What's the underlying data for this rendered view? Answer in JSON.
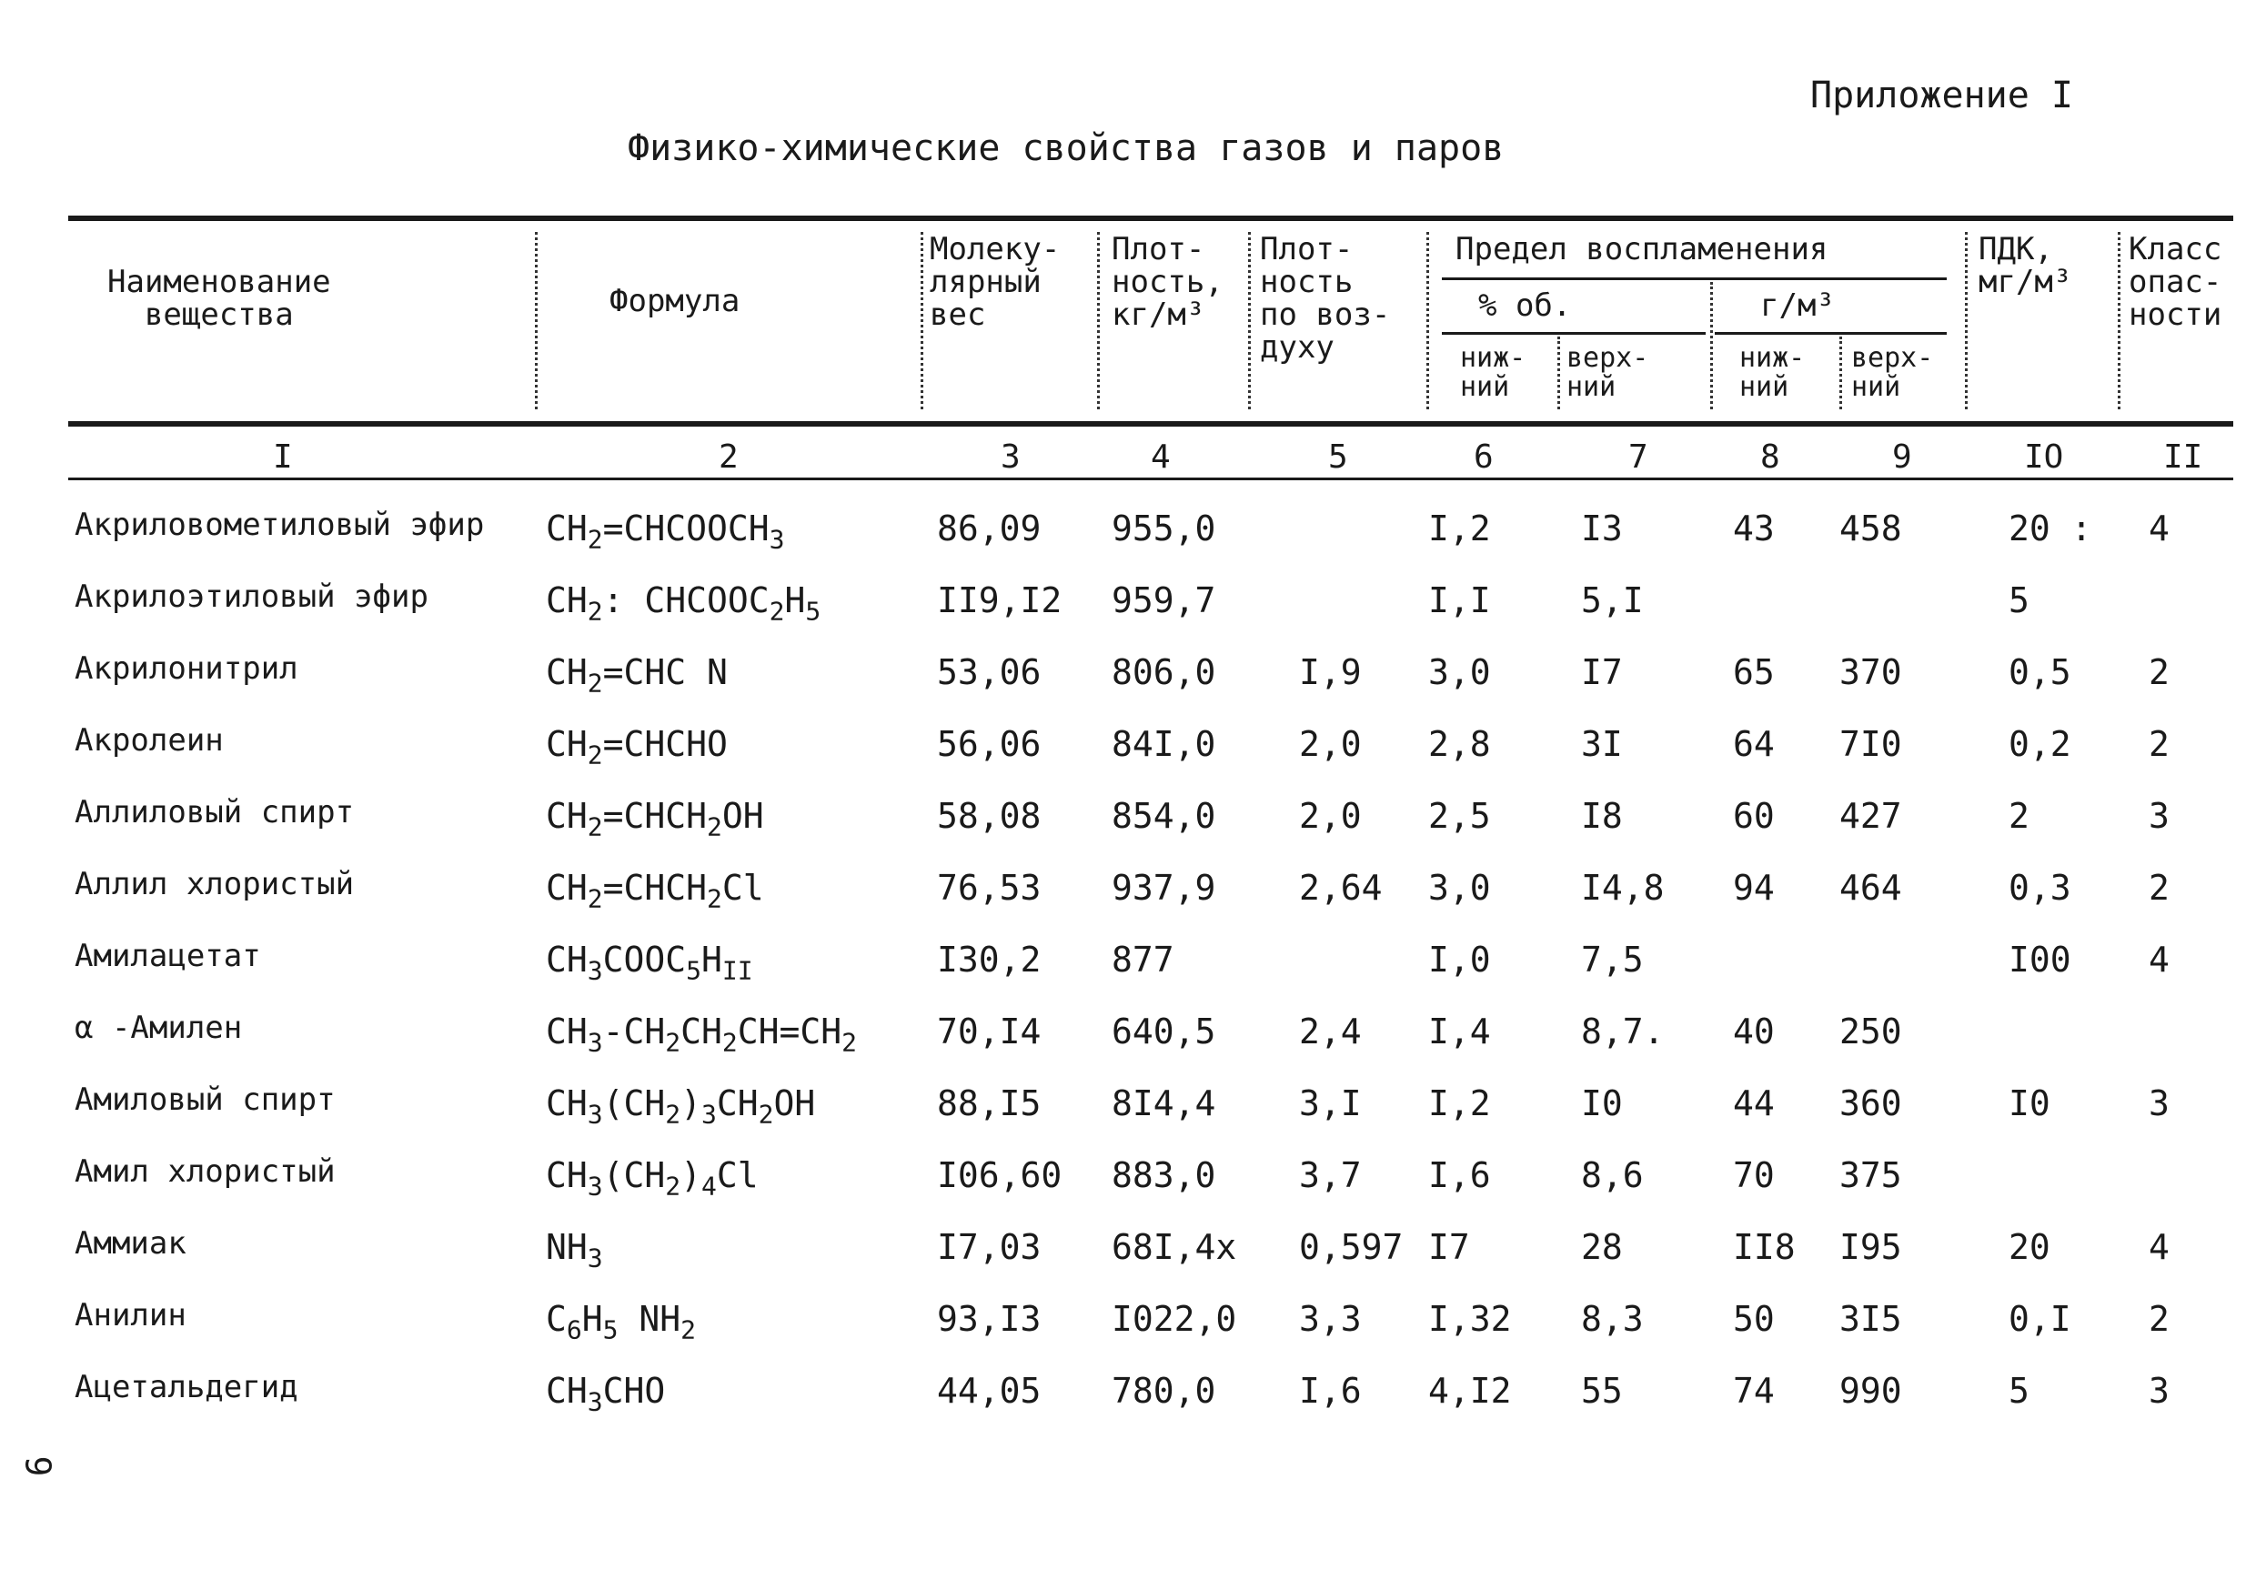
{
  "appendix_label": "Приложение I",
  "title": "Физико-химические свойства газов и паров",
  "page_number": "9",
  "header": {
    "name": "Наименование\nвещества",
    "formula": "Формула",
    "mol_weight": "Молеку-\nлярный\nвес",
    "density": "Плот-\nность,\nкг/м³",
    "density_air": "Плот-\nность\nпо воз-\nдуху",
    "flammability_limit": "Предел воспламенения",
    "vol_percent": "% об.",
    "g_per_m3": "г/м³",
    "lower_1": "ниж-\nний",
    "upper_1": "верх-\nний",
    "lower_2": "ниж-\nний",
    "upper_2": "верх-\nний",
    "pdk": "ПДК,\nмг/м³",
    "hazard_class": "Класс\nопас-\nности"
  },
  "column_numbers": [
    "I",
    "2",
    "3",
    "4",
    "5",
    "6",
    "7",
    "8",
    "9",
    "IO",
    "II"
  ],
  "rows": [
    {
      "name": "Акриловометиловый эфир",
      "formula": [
        "CH",
        "2",
        "=CHCOOCH",
        "3"
      ],
      "mw": "86,09",
      "density": "955,0",
      "density_air": "",
      "vol_low": "I,2",
      "vol_high": "I3",
      "g_low": "43",
      "g_high": "458",
      "pdk": "20 :",
      "class": "4"
    },
    {
      "name": "Акрилоэтиловый эфир",
      "formula": [
        "CH",
        "2",
        ": CHCOOC",
        "2",
        "H",
        "5"
      ],
      "mw": "II9,I2",
      "density": "959,7",
      "density_air": "",
      "vol_low": "I,I",
      "vol_high": "5,I",
      "g_low": "",
      "g_high": "",
      "pdk": "5",
      "class": ""
    },
    {
      "name": "Акрилонитрил",
      "formula": [
        "CH",
        "2",
        "=CHC N"
      ],
      "mw": "53,06",
      "density": "806,0",
      "density_air": "I,9",
      "vol_low": "3,0",
      "vol_high": "I7",
      "g_low": "65",
      "g_high": "370",
      "pdk": "0,5",
      "class": "2"
    },
    {
      "name": "Акролеин",
      "formula": [
        "CH",
        "2",
        "=CHCHO"
      ],
      "mw": "56,06",
      "density": "84I,0",
      "density_air": "2,0",
      "vol_low": "2,8",
      "vol_high": "3I",
      "g_low": "64",
      "g_high": "7I0",
      "pdk": "0,2",
      "class": "2"
    },
    {
      "name": "Аллиловый спирт",
      "formula": [
        "CH",
        "2",
        "=CHCH",
        "2",
        "OH"
      ],
      "mw": "58,08",
      "density": "854,0",
      "density_air": "2,0",
      "vol_low": "2,5",
      "vol_high": "I8",
      "g_low": "60",
      "g_high": "427",
      "pdk": "2",
      "class": "3"
    },
    {
      "name": "Аллил хлористый",
      "formula": [
        "CH",
        "2",
        "=CHCH",
        "2",
        "Cl"
      ],
      "mw": "76,53",
      "density": "937,9",
      "density_air": "2,64",
      "vol_low": "3,0",
      "vol_high": "I4,8",
      "g_low": "94",
      "g_high": "464",
      "pdk": "0,3",
      "class": "2"
    },
    {
      "name": "Амилацетат",
      "formula": [
        "CH",
        "3",
        "COOC",
        "5",
        "H",
        "II"
      ],
      "mw": "I30,2",
      "density": "877",
      "density_air": "",
      "vol_low": "I,0",
      "vol_high": "7,5",
      "g_low": "",
      "g_high": "",
      "pdk": "I00",
      "class": "4"
    },
    {
      "name": "α -Амилен",
      "formula": [
        "CH",
        "3",
        "-CH",
        "2",
        "CH",
        "2",
        "CH=CH",
        "2"
      ],
      "mw": "70,I4",
      "density": "640,5",
      "density_air": "2,4",
      "vol_low": "I,4",
      "vol_high": "8,7.",
      "g_low": "40",
      "g_high": "250",
      "pdk": "",
      "class": ""
    },
    {
      "name": "Амиловый спирт",
      "formula": [
        "CH",
        "3",
        "(CH",
        "2",
        ")",
        "3",
        "CH",
        "2",
        "OH"
      ],
      "mw": "88,I5",
      "density": "8I4,4",
      "density_air": "3,I",
      "vol_low": "I,2",
      "vol_high": "I0",
      "g_low": "44",
      "g_high": "360",
      "pdk": "I0",
      "class": "3"
    },
    {
      "name": "Амил хлористый",
      "formula": [
        "CH",
        "3",
        "(CH",
        "2",
        ")",
        "4",
        "Cl"
      ],
      "mw": "I06,60",
      "density": "883,0",
      "density_air": "3,7",
      "vol_low": "I,6",
      "vol_high": "8,6",
      "g_low": "70",
      "g_high": "375",
      "pdk": "",
      "class": ""
    },
    {
      "name": "Аммиак",
      "formula": [
        "NH",
        "3"
      ],
      "mw": "I7,03",
      "density": "68I,4x",
      "density_air": "0,597",
      "vol_low": "I7",
      "vol_high": "28",
      "g_low": "II8",
      "g_high": "I95",
      "pdk": "20",
      "class": "4"
    },
    {
      "name": "Анилин",
      "formula": [
        "C",
        "6",
        "H",
        "5",
        " NH",
        "2"
      ],
      "mw": "93,I3",
      "density": "I022,0",
      "density_air": "3,3",
      "vol_low": "I,32",
      "vol_high": "8,3",
      "g_low": "50",
      "g_high": "3I5",
      "pdk": "0,I",
      "class": "2"
    },
    {
      "name": "Ацетальдегид",
      "formula": [
        "CH",
        "3",
        "CHO"
      ],
      "mw": "44,05",
      "density": "780,0",
      "density_air": "I,6",
      "vol_low": "4,I2",
      "vol_high": "55",
      "g_low": "74",
      "g_high": "990",
      "pdk": "5",
      "class": "3"
    }
  ]
}
